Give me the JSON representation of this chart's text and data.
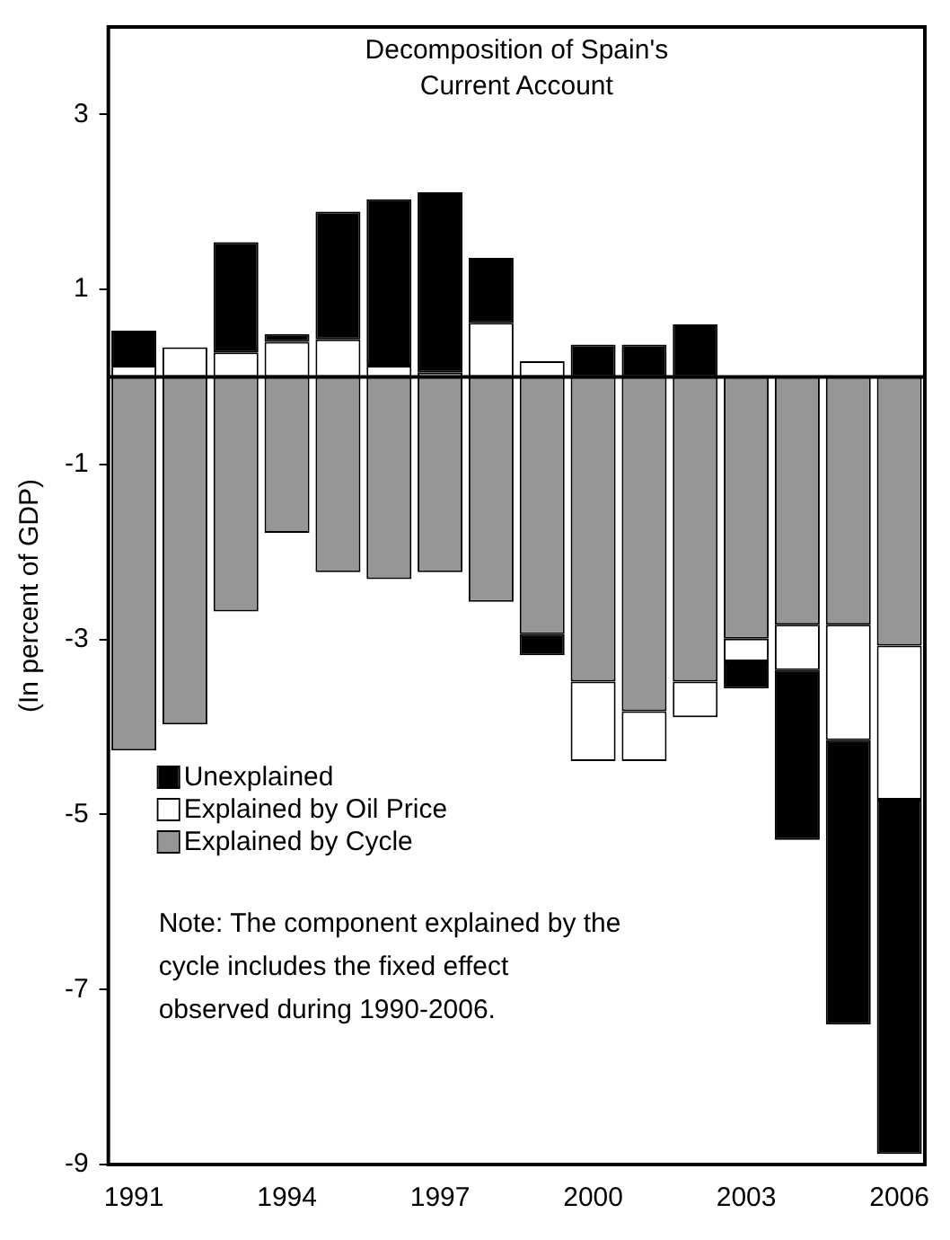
{
  "chart_data": {
    "type": "bar",
    "title": "Decomposition of Spain's Current Account",
    "ylabel": "(In percent of GDP)",
    "categories": [
      "1991",
      null,
      null,
      "1994",
      null,
      null,
      "1997",
      null,
      null,
      "2000",
      null,
      null,
      "2003",
      null,
      null,
      "2006"
    ],
    "stacked": true,
    "ylim": [
      -9,
      4
    ],
    "yticks": [
      3,
      1,
      -1,
      -3,
      -5,
      -7,
      -9
    ],
    "grid": false,
    "legend": "bottom left",
    "series": [
      {
        "name": "Explained by Cycle",
        "color": "#969696",
        "values": [
          -4.27,
          -3.97,
          -2.68,
          -1.78,
          -2.23,
          -2.31,
          -2.23,
          -2.57,
          -2.94,
          -3.48,
          -3.82,
          -3.48,
          -2.99,
          -2.83,
          -2.83,
          -3.07
        ]
      },
      {
        "name": "Explained by Oil Price",
        "color": "#ffffff",
        "values": [
          0.13,
          0.34,
          0.28,
          0.4,
          0.43,
          0.13,
          0.05,
          0.62,
          0.18,
          -0.91,
          -0.57,
          -0.41,
          -0.26,
          -0.52,
          -1.32,
          -1.76
        ]
      },
      {
        "name": "Unexplained",
        "color": "#000000",
        "values": [
          0.4,
          null,
          1.26,
          0.09,
          1.46,
          1.9,
          2.06,
          0.74,
          -0.24,
          0.37,
          0.37,
          0.6,
          -0.31,
          -1.94,
          -3.25,
          -4.05
        ]
      }
    ],
    "ref_lines": [
      {
        "axis": "y",
        "value": 0
      }
    ],
    "annotations": [
      "Note: The component explained by the cycle includes the fixed effect observed during 1990-2006."
    ]
  }
}
